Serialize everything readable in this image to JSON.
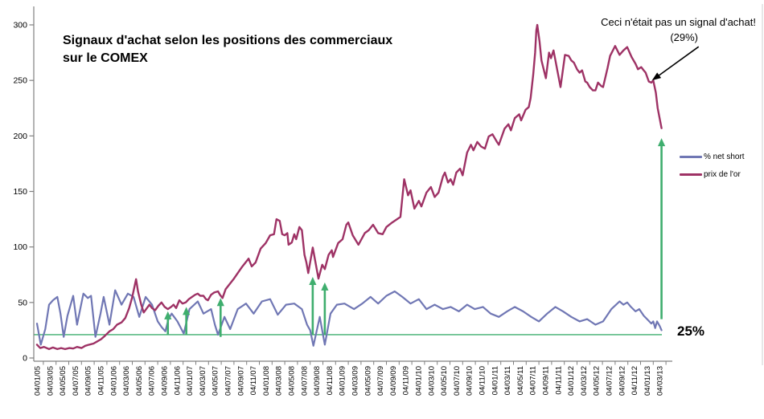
{
  "chart": {
    "title_line1": "Signaux d'achat selon les positions des commerciaux",
    "title_line2": "sur le COMEX",
    "annotation": {
      "line1": "Ceci n'était pas un signal d'achat!",
      "line2": "(29%)"
    },
    "reference_label": "25%",
    "legend": [
      {
        "label": "% net short",
        "color": "#7077B4"
      },
      {
        "label": "prix de l'or",
        "color": "#9E3265"
      }
    ]
  },
  "chart_data": {
    "type": "line",
    "title": "Signaux d'achat selon les positions des commerciaux sur le COMEX",
    "x_axis": "dates (dd/mm/yy), one tick every 2 months from 04/01/05 to 04/03/13",
    "x_tick_labels": [
      "04/01/05",
      "04/03/05",
      "04/05/05",
      "04/07/05",
      "04/09/05",
      "04/11/05",
      "04/01/06",
      "04/03/06",
      "04/05/06",
      "04/07/06",
      "04/09/06",
      "04/11/06",
      "04/01/07",
      "04/03/07",
      "04/05/07",
      "04/07/07",
      "04/09/07",
      "04/11/07",
      "04/01/08",
      "04/03/08",
      "04/05/08",
      "04/07/08",
      "04/09/08",
      "04/11/08",
      "04/01/09",
      "04/03/09",
      "04/05/09",
      "04/07/09",
      "04/09/09",
      "04/11/09",
      "04/01/10",
      "04/03/10",
      "04/05/10",
      "04/07/10",
      "04/09/10",
      "04/11/10",
      "04/01/11",
      "04/03/11",
      "04/05/11",
      "04/07/11",
      "04/09/11",
      "04/11/11",
      "04/01/12",
      "04/03/12",
      "04/05/12",
      "04/07/12",
      "04/09/12",
      "04/11/12",
      "04/01/13",
      "04/03/13"
    ],
    "y_ticks": [
      0,
      50,
      100,
      150,
      200,
      250,
      300
    ],
    "ylim": [
      0,
      310
    ],
    "x_months_range": [
      0,
      98.3
    ],
    "grid": false,
    "legend_position": "right",
    "axis_color": "#808080",
    "signal_color": "#3FAE6E",
    "reference_line": {
      "value": 21,
      "label": "25%"
    },
    "buy_signal_arrows": [
      {
        "month": 20.6,
        "from": 21,
        "to": 42
      },
      {
        "month": 23.5,
        "from": 21,
        "to": 46
      },
      {
        "month": 28.9,
        "from": 19,
        "to": 54
      },
      {
        "month": 43.4,
        "from": 21,
        "to": 73
      },
      {
        "month": 45.3,
        "from": 21,
        "to": 68
      },
      {
        "month": 98.3,
        "from": 35,
        "to": 198
      }
    ],
    "annotation_arrow": {
      "target_month": 96.8,
      "target_value": 250
    },
    "series": [
      {
        "name": "% net short",
        "color": "#7077B4",
        "width": 2.2,
        "points": [
          [
            0,
            31
          ],
          [
            0.6,
            12
          ],
          [
            1.3,
            26
          ],
          [
            1.9,
            48
          ],
          [
            2.5,
            52
          ],
          [
            3.2,
            55
          ],
          [
            3.7,
            40
          ],
          [
            4.2,
            19
          ],
          [
            4.8,
            38
          ],
          [
            5.7,
            56
          ],
          [
            6.3,
            30
          ],
          [
            7.3,
            58
          ],
          [
            8,
            54
          ],
          [
            8.5,
            56
          ],
          [
            9.2,
            19
          ],
          [
            10,
            40
          ],
          [
            10.5,
            55
          ],
          [
            11.4,
            30
          ],
          [
            12.3,
            61
          ],
          [
            13.3,
            48
          ],
          [
            14.3,
            58
          ],
          [
            15.2,
            55
          ],
          [
            16.1,
            37
          ],
          [
            17.1,
            55
          ],
          [
            18.1,
            48
          ],
          [
            19,
            33
          ],
          [
            19.6,
            28
          ],
          [
            20.2,
            24
          ],
          [
            20.7,
            35
          ],
          [
            21.2,
            40
          ],
          [
            22.1,
            33
          ],
          [
            23.1,
            22
          ],
          [
            24,
            44
          ],
          [
            25.3,
            51
          ],
          [
            26.2,
            40
          ],
          [
            27.4,
            44
          ],
          [
            28,
            30
          ],
          [
            28.5,
            21
          ],
          [
            29.5,
            37
          ],
          [
            30.4,
            26
          ],
          [
            31.6,
            44
          ],
          [
            32.9,
            49
          ],
          [
            34.1,
            40
          ],
          [
            35.4,
            51
          ],
          [
            36.7,
            53
          ],
          [
            37.9,
            39
          ],
          [
            39.2,
            48
          ],
          [
            40.5,
            49
          ],
          [
            41.7,
            44
          ],
          [
            42.5,
            30
          ],
          [
            43,
            25
          ],
          [
            43.5,
            11
          ],
          [
            44.5,
            37
          ],
          [
            45.3,
            12
          ],
          [
            46.2,
            40
          ],
          [
            47.2,
            48
          ],
          [
            48.4,
            49
          ],
          [
            49.9,
            44
          ],
          [
            51.2,
            49
          ],
          [
            52.5,
            55
          ],
          [
            53.7,
            49
          ],
          [
            55,
            56
          ],
          [
            56.3,
            60
          ],
          [
            57.5,
            55
          ],
          [
            58.8,
            49
          ],
          [
            60.1,
            53
          ],
          [
            61.3,
            44
          ],
          [
            62.6,
            48
          ],
          [
            63.9,
            44
          ],
          [
            65.1,
            46
          ],
          [
            66.4,
            42
          ],
          [
            67.7,
            48
          ],
          [
            68.9,
            44
          ],
          [
            70.2,
            46
          ],
          [
            71.4,
            40
          ],
          [
            72.7,
            37
          ],
          [
            74,
            42
          ],
          [
            75.2,
            46
          ],
          [
            76.5,
            42
          ],
          [
            77.8,
            37
          ],
          [
            79,
            33
          ],
          [
            80.3,
            40
          ],
          [
            81.6,
            46
          ],
          [
            82.8,
            42
          ],
          [
            84.1,
            37
          ],
          [
            85.4,
            33
          ],
          [
            86.6,
            35
          ],
          [
            87.9,
            30
          ],
          [
            89.1,
            33
          ],
          [
            90.4,
            44
          ],
          [
            91.7,
            51
          ],
          [
            92.3,
            48
          ],
          [
            92.9,
            50
          ],
          [
            93.5,
            46
          ],
          [
            94.2,
            42
          ],
          [
            94.8,
            44
          ],
          [
            95.5,
            38
          ],
          [
            96.2,
            34
          ],
          [
            96.7,
            31
          ],
          [
            97,
            33
          ],
          [
            97.3,
            27
          ],
          [
            97.6,
            33
          ],
          [
            98,
            29
          ],
          [
            98.3,
            25
          ]
        ]
      },
      {
        "name": "prix de l'or",
        "color": "#9E3265",
        "width": 2.4,
        "points": [
          [
            0,
            12
          ],
          [
            0.5,
            9
          ],
          [
            1.1,
            10
          ],
          [
            1.9,
            8
          ],
          [
            2.5,
            9.5
          ],
          [
            3.2,
            8
          ],
          [
            3.8,
            9
          ],
          [
            4.4,
            8
          ],
          [
            5.1,
            9
          ],
          [
            5.7,
            8.5
          ],
          [
            6.3,
            10
          ],
          [
            7,
            9
          ],
          [
            7.6,
            11
          ],
          [
            8.2,
            12
          ],
          [
            8.9,
            13
          ],
          [
            9.5,
            15
          ],
          [
            10.1,
            17
          ],
          [
            10.7,
            20
          ],
          [
            11.4,
            24
          ],
          [
            12,
            26
          ],
          [
            12.6,
            30
          ],
          [
            13.3,
            32
          ],
          [
            13.9,
            36
          ],
          [
            14.5,
            45
          ],
          [
            15,
            55
          ],
          [
            15.6,
            71
          ],
          [
            15.9,
            60
          ],
          [
            16.4,
            48
          ],
          [
            16.8,
            41
          ],
          [
            17.3,
            45
          ],
          [
            17.7,
            48
          ],
          [
            18.1,
            45
          ],
          [
            18.6,
            43
          ],
          [
            19.1,
            47
          ],
          [
            19.6,
            50
          ],
          [
            20.1,
            46
          ],
          [
            20.6,
            44
          ],
          [
            21.1,
            46
          ],
          [
            21.5,
            48
          ],
          [
            21.9,
            45
          ],
          [
            22.4,
            52
          ],
          [
            22.9,
            49
          ],
          [
            23.4,
            50
          ],
          [
            23.9,
            53
          ],
          [
            24.4,
            55
          ],
          [
            24.9,
            57
          ],
          [
            25.3,
            58
          ],
          [
            25.7,
            56
          ],
          [
            26.2,
            56
          ],
          [
            26.6,
            53
          ],
          [
            26.9,
            52
          ],
          [
            27.4,
            57
          ],
          [
            27.9,
            59
          ],
          [
            28.5,
            60
          ],
          [
            28.8,
            57
          ],
          [
            29.2,
            54
          ],
          [
            29.7,
            62
          ],
          [
            31,
            71.5
          ],
          [
            32.2,
            81.5
          ],
          [
            33.3,
            89.5
          ],
          [
            33.8,
            82.5
          ],
          [
            34.4,
            86
          ],
          [
            35.2,
            98.5
          ],
          [
            36,
            103.5
          ],
          [
            36.7,
            110.5
          ],
          [
            37.3,
            111.5
          ],
          [
            37.7,
            125
          ],
          [
            38.2,
            123.5
          ],
          [
            38.6,
            111.5
          ],
          [
            39,
            110.5
          ],
          [
            39.4,
            112.5
          ],
          [
            39.6,
            102
          ],
          [
            40.1,
            104
          ],
          [
            40.5,
            111.5
          ],
          [
            40.8,
            107
          ],
          [
            41.3,
            118
          ],
          [
            41.7,
            115
          ],
          [
            42.1,
            93
          ],
          [
            42.4,
            86
          ],
          [
            42.7,
            76.5
          ],
          [
            43.4,
            99.5
          ],
          [
            44.3,
            71.5
          ],
          [
            44.9,
            84
          ],
          [
            45.3,
            80
          ],
          [
            45.9,
            93
          ],
          [
            46.4,
            97
          ],
          [
            46.6,
            91
          ],
          [
            47.4,
            103.5
          ],
          [
            48.1,
            107
          ],
          [
            48.7,
            120
          ],
          [
            49,
            122
          ],
          [
            49.7,
            110.5
          ],
          [
            50.6,
            102
          ],
          [
            51.6,
            112.5
          ],
          [
            52.2,
            115
          ],
          [
            52.9,
            120
          ],
          [
            53.7,
            112.5
          ],
          [
            54.4,
            111.5
          ],
          [
            55,
            118
          ],
          [
            55.9,
            122
          ],
          [
            57.2,
            127
          ],
          [
            57.8,
            161
          ],
          [
            58.4,
            146.5
          ],
          [
            58.8,
            151
          ],
          [
            59.4,
            134.5
          ],
          [
            60.1,
            141.5
          ],
          [
            60.5,
            136.5
          ],
          [
            61.3,
            149
          ],
          [
            62,
            154
          ],
          [
            62.6,
            145
          ],
          [
            63.2,
            149
          ],
          [
            63.9,
            163.5
          ],
          [
            64.2,
            167
          ],
          [
            64.7,
            158
          ],
          [
            65.1,
            161
          ],
          [
            65.5,
            156
          ],
          [
            66,
            167
          ],
          [
            66.6,
            170.5
          ],
          [
            67,
            164.5
          ],
          [
            67.7,
            185
          ],
          [
            68.3,
            192
          ],
          [
            68.7,
            187
          ],
          [
            69.3,
            194.5
          ],
          [
            69.9,
            190.5
          ],
          [
            70.5,
            188.5
          ],
          [
            71.1,
            199.5
          ],
          [
            71.7,
            201.5
          ],
          [
            72.4,
            194.5
          ],
          [
            72.7,
            192
          ],
          [
            73.6,
            206.5
          ],
          [
            74.2,
            210.5
          ],
          [
            74.6,
            205
          ],
          [
            75.2,
            216
          ],
          [
            75.9,
            219.5
          ],
          [
            76.2,
            214
          ],
          [
            76.9,
            223.5
          ],
          [
            77.4,
            226
          ],
          [
            77.7,
            234
          ],
          [
            78.1,
            255
          ],
          [
            78.4,
            275
          ],
          [
            78.6,
            295
          ],
          [
            78.75,
            300
          ],
          [
            79.1,
            285
          ],
          [
            79.4,
            268
          ],
          [
            80.1,
            252
          ],
          [
            80.6,
            275
          ],
          [
            80.9,
            270
          ],
          [
            81.3,
            277
          ],
          [
            81.9,
            259
          ],
          [
            82.4,
            244
          ],
          [
            83.1,
            273
          ],
          [
            83.7,
            272
          ],
          [
            84.1,
            268
          ],
          [
            84.5,
            266
          ],
          [
            85,
            260
          ],
          [
            85.4,
            257
          ],
          [
            85.8,
            259
          ],
          [
            86.3,
            249
          ],
          [
            86.6,
            248
          ],
          [
            87,
            244
          ],
          [
            87.5,
            241
          ],
          [
            87.9,
            241
          ],
          [
            88.3,
            248
          ],
          [
            88.8,
            245
          ],
          [
            89.1,
            244
          ],
          [
            89.8,
            261
          ],
          [
            90.2,
            272
          ],
          [
            91,
            281
          ],
          [
            91.7,
            273
          ],
          [
            92.3,
            277
          ],
          [
            92.9,
            280
          ],
          [
            93.6,
            271
          ],
          [
            94.2,
            265
          ],
          [
            94.6,
            260
          ],
          [
            95.1,
            262
          ],
          [
            95.5,
            259
          ],
          [
            95.8,
            257
          ],
          [
            96.3,
            249
          ],
          [
            96.7,
            248
          ],
          [
            97,
            250
          ],
          [
            97.4,
            239
          ],
          [
            97.7,
            225
          ],
          [
            98.3,
            207
          ]
        ]
      }
    ]
  }
}
